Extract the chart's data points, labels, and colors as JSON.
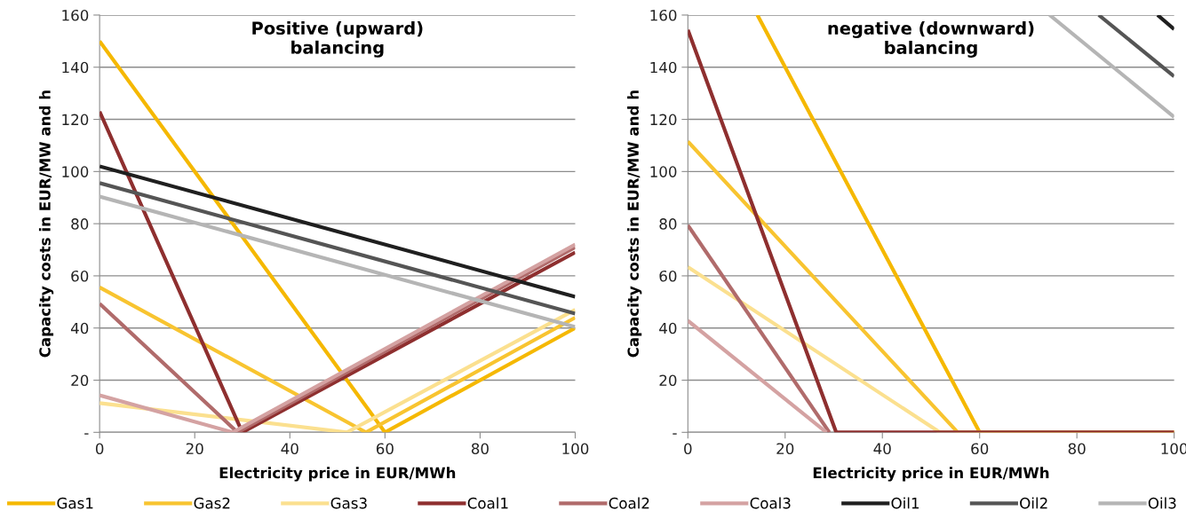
{
  "chart_data": [
    {
      "type": "line",
      "title": "Positive (upward)\nbalancing",
      "xlabel": "Electricity price in EUR/MWh",
      "ylabel": "Capacity costs in EUR/MW and h",
      "xlim": [
        0,
        100
      ],
      "xticks": [
        0,
        20,
        40,
        60,
        80,
        100
      ],
      "ylim": [
        0,
        160
      ],
      "yticks": [
        {
          "value": 0,
          "label": "-"
        },
        20,
        40,
        60,
        80,
        100,
        120,
        140,
        160
      ],
      "grid": "y",
      "legend": "bottom",
      "marker": "none",
      "line_style": "solid",
      "series": [
        {
          "name": "Gas1",
          "color": "#f5b800",
          "x": [
            0,
            60,
            100
          ],
          "values": [
            150,
            0,
            40
          ]
        },
        {
          "name": "Gas2",
          "color": "#f8c430",
          "x": [
            0,
            56,
            100
          ],
          "values": [
            55.6,
            0,
            44
          ]
        },
        {
          "name": "Gas3",
          "color": "#fbe08f",
          "x": [
            0,
            52,
            100
          ],
          "values": [
            11.2,
            0,
            47
          ]
        },
        {
          "name": "Coal1",
          "color": "#8e2f2f",
          "x": [
            0,
            30,
            100
          ],
          "values": [
            123,
            0,
            69
          ]
        },
        {
          "name": "Coal2",
          "color": "#b06b6b",
          "x": [
            0,
            29,
            100
          ],
          "values": [
            49.3,
            0,
            71
          ]
        },
        {
          "name": "Coal3",
          "color": "#d4a2a2",
          "x": [
            0,
            28,
            100
          ],
          "values": [
            14.2,
            0,
            72
          ]
        },
        {
          "name": "Oil1",
          "color": "#1f1f1f",
          "x": [
            0,
            100
          ],
          "values": [
            102,
            52
          ]
        },
        {
          "name": "Oil2",
          "color": "#555555",
          "x": [
            0,
            100
          ],
          "values": [
            95.6,
            45.5
          ]
        },
        {
          "name": "Oil3",
          "color": "#b5b5b5",
          "x": [
            0,
            100
          ],
          "values": [
            90.4,
            40.4
          ]
        }
      ]
    },
    {
      "type": "line",
      "title": "negative (downward)\nbalancing",
      "xlabel": "Electricity price in EUR/MWh",
      "ylabel": "Capacity costs in EUR/MW and h",
      "xlim": [
        0,
        100
      ],
      "xticks": [
        0,
        20,
        40,
        60,
        80,
        100
      ],
      "ylim": [
        0,
        160
      ],
      "yticks": [
        {
          "value": 0,
          "label": "-"
        },
        20,
        40,
        60,
        80,
        100,
        120,
        140,
        160
      ],
      "grid": "y",
      "legend": "bottom",
      "marker": "none",
      "line_style": "solid",
      "series": [
        {
          "name": "Gas1",
          "color": "#f5b800",
          "x": [
            14.3,
            60,
            100
          ],
          "values": [
            160,
            0,
            0
          ]
        },
        {
          "name": "Gas2",
          "color": "#f8c430",
          "x": [
            0,
            55.5,
            100
          ],
          "values": [
            111.5,
            0,
            0
          ]
        },
        {
          "name": "Gas3",
          "color": "#fbe08f",
          "x": [
            0,
            51.8,
            100
          ],
          "values": [
            63.4,
            0,
            0
          ]
        },
        {
          "name": "Coal2",
          "color": "#b06b6b",
          "x": [
            0,
            29.1
          ],
          "values": [
            79.4,
            0
          ]
        },
        {
          "name": "Coal3",
          "color": "#d4a2a2",
          "x": [
            0,
            28.5
          ],
          "values": [
            42.8,
            0
          ]
        },
        {
          "name": "Coal1",
          "color": "#8e2f2f",
          "x": [
            0,
            30.5,
            100
          ],
          "values": [
            154.3,
            0,
            0
          ]
        },
        {
          "name": "Oil1",
          "color": "#1f1f1f",
          "x": [
            96.6,
            100
          ],
          "values": [
            160,
            154.6
          ]
        },
        {
          "name": "Oil2",
          "color": "#555555",
          "x": [
            84.5,
            100
          ],
          "values": [
            160,
            136.5
          ]
        },
        {
          "name": "Oil3",
          "color": "#b5b5b5",
          "x": [
            74.4,
            100
          ],
          "values": [
            160,
            120.9
          ]
        }
      ]
    }
  ]
}
